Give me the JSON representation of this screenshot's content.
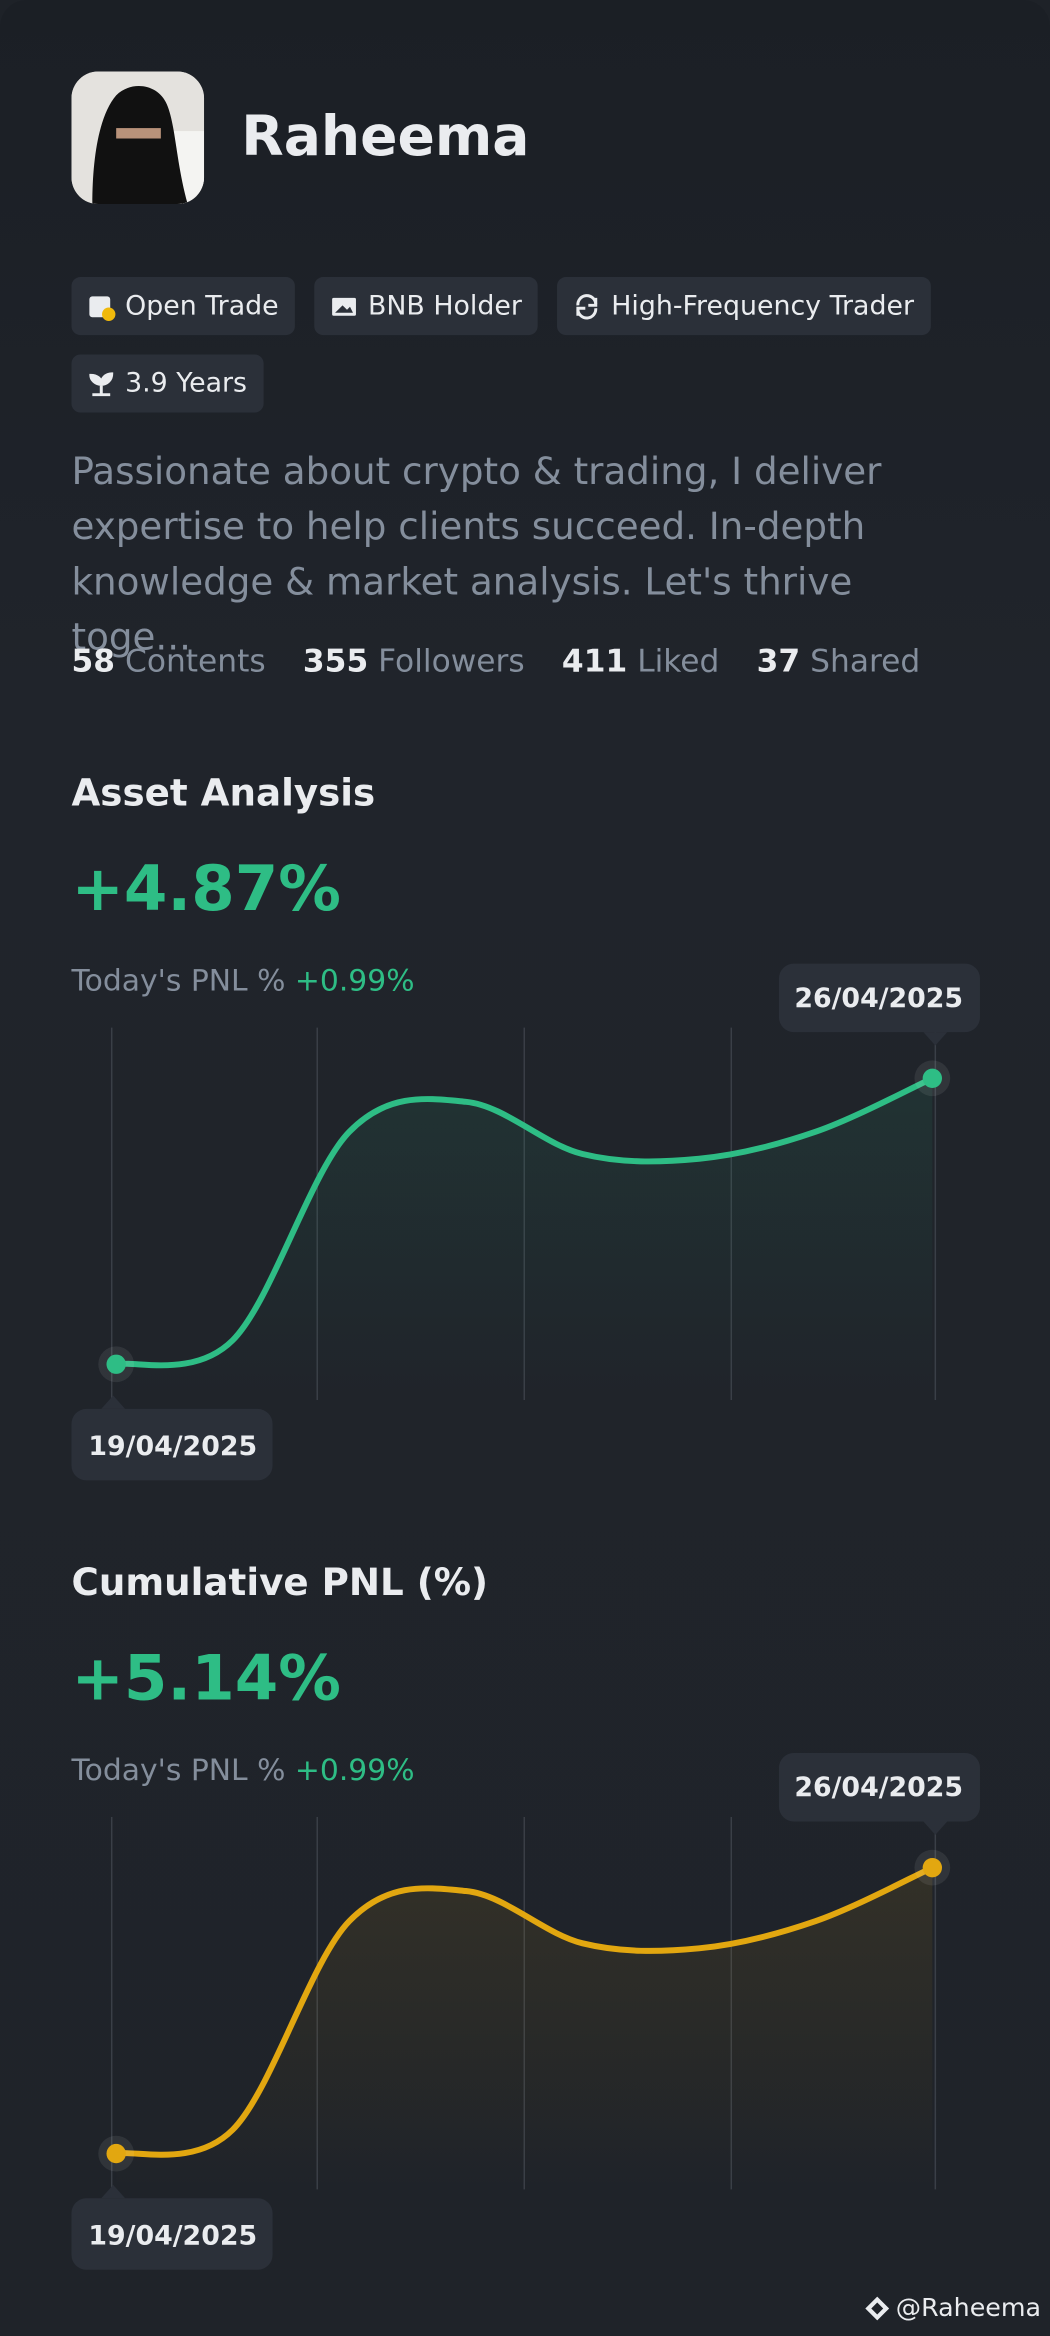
{
  "profile": {
    "name": "Raheema",
    "badges": [
      "Open Trade",
      "BNB Holder",
      "High-Frequency Trader",
      "3.9 Years"
    ],
    "bio": "Passionate about crypto & trading, I deliver expertise to help clients succeed. In-depth knowledge & market analysis. Let's thrive toge...",
    "stats": [
      {
        "value": 58,
        "label": "Contents"
      },
      {
        "value": 355,
        "label": "Followers"
      },
      {
        "value": 411,
        "label": "Liked"
      },
      {
        "value": 37,
        "label": "Shared"
      }
    ]
  },
  "chart_data": [
    {
      "type": "line",
      "title": "Asset Analysis",
      "headline": "+4.87%",
      "pnl_label": "Today's PNL %",
      "pnl_value": "+0.99%",
      "categories": [
        "19/04/2025",
        null,
        null,
        null,
        null,
        null,
        null,
        "26/04/2025"
      ],
      "values": [
        0,
        0.41,
        3.96,
        4.47,
        3.58,
        3.5,
        3.96,
        4.87
      ],
      "color": "#2ebd85"
    },
    {
      "type": "line",
      "title": "Cumulative PNL (%)",
      "headline": "+5.14%",
      "pnl_label": "Today's PNL %",
      "pnl_value": "+0.99%",
      "categories": [
        "19/04/2025",
        null,
        null,
        null,
        null,
        null,
        null,
        "26/04/2025"
      ],
      "values": [
        0,
        0.43,
        4.18,
        4.72,
        3.78,
        3.69,
        4.18,
        5.14
      ],
      "color": "#e2a710"
    }
  ],
  "footer": "@Raheema"
}
